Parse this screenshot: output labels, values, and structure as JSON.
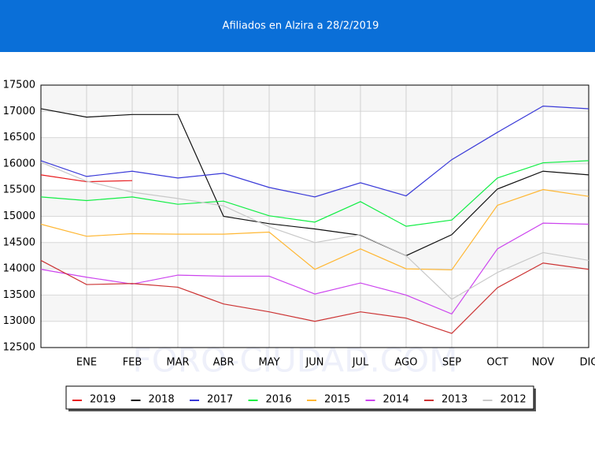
{
  "chart_data": {
    "type": "line",
    "title": "Afiliados en Alzira a 28/2/2019",
    "watermark": "FORO-CIUDAD.COM",
    "categories": [
      null,
      "ENE",
      "FEB",
      "MAR",
      "ABR",
      "MAY",
      "JUN",
      "JUL",
      "AGO",
      "SEP",
      "OCT",
      "NOV",
      "DIC"
    ],
    "ylim": [
      12500,
      17500
    ],
    "yticks": [
      12500,
      13000,
      13500,
      14000,
      14500,
      15000,
      15500,
      16000,
      16500,
      17000,
      17500
    ],
    "grid": true,
    "series": [
      {
        "name": "2019",
        "color": "#e8191c",
        "values": [
          15790,
          15660,
          15680,
          null,
          null,
          null,
          null,
          null,
          null,
          null,
          null,
          null,
          null
        ]
      },
      {
        "name": "2018",
        "color": "#111111",
        "values": [
          17050,
          16890,
          16940,
          16940,
          15000,
          14860,
          14760,
          14640,
          14250,
          14650,
          15520,
          15860,
          15790
        ]
      },
      {
        "name": "2017",
        "color": "#3a3ad8",
        "values": [
          16060,
          15760,
          15860,
          15730,
          15820,
          15550,
          15370,
          15640,
          15390,
          16080,
          16600,
          17100,
          17050
        ]
      },
      {
        "name": "2016",
        "color": "#11ee44",
        "values": [
          15370,
          15300,
          15370,
          15230,
          15290,
          15010,
          14890,
          15280,
          14810,
          14930,
          15730,
          16020,
          16060
        ]
      },
      {
        "name": "2015",
        "color": "#ffb733",
        "values": [
          14850,
          14620,
          14670,
          14660,
          14660,
          14700,
          13990,
          14380,
          14000,
          13980,
          15210,
          15510,
          15380
        ]
      },
      {
        "name": "2014",
        "color": "#cc44ee",
        "values": [
          13990,
          13840,
          13710,
          13880,
          13860,
          13860,
          13520,
          13730,
          13500,
          13140,
          14380,
          14870,
          14850
        ]
      },
      {
        "name": "2013",
        "color": "#cc3333",
        "values": [
          14160,
          13700,
          13720,
          13650,
          13330,
          13180,
          13000,
          13180,
          13060,
          12770,
          13640,
          14110,
          13990
        ]
      },
      {
        "name": "2012",
        "color": "#c8c8c8",
        "values": [
          16030,
          15670,
          15460,
          15340,
          15200,
          14800,
          14500,
          14650,
          14250,
          13420,
          13930,
          14310,
          14160
        ]
      }
    ]
  }
}
